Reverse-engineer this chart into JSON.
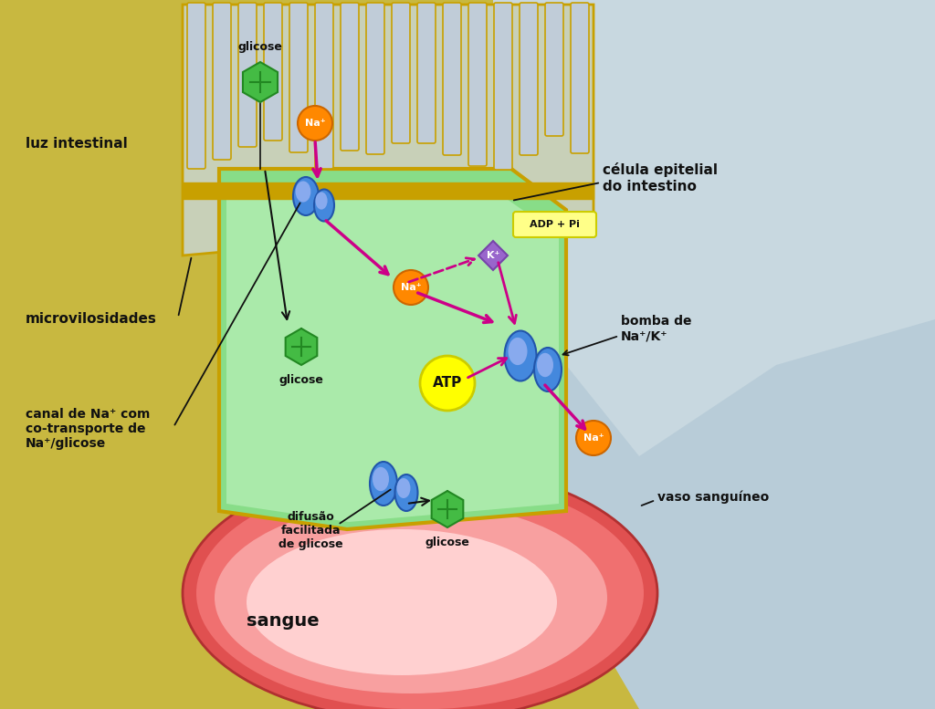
{
  "labels": {
    "glicose_top": "glicose",
    "luz_intestinal": "luz intestinal",
    "microvilosidades": "microvilosidades",
    "glicose_mid": "glicose",
    "canal_na": "canal de Na⁺ com\nco-transporte de\nNa⁺/glicose",
    "celula_epitelial": "célula epitelial\ndo intestino",
    "adp_pi": "ADP + Pi",
    "atp": "ATP",
    "bomba_na_k": "bomba de\nNa⁺/K⁺",
    "difusao": "difusão\nfacilitada\nde glicose",
    "glicose_bot": "glicose",
    "sangue": "sangue",
    "vaso_sanguineo": "vaso sanguíneo",
    "na1": "Na⁺",
    "na2": "Na⁺",
    "na3": "Na⁺",
    "k": "K⁺"
  },
  "colors": {
    "bg_yellow": "#c8b840",
    "bg_blue": "#b8ccd8",
    "cell_fill": "#88dd88",
    "cell_border": "#c8a000",
    "microvilli_fill": "#b8c8d8",
    "microvilli_border": "#c8a000",
    "blood_outer": "#e05050",
    "blood_mid": "#f07070",
    "blood_inner": "#f8a0a0",
    "blood_center": "#ffd0d0",
    "na_fill": "#ff8800",
    "na_border": "#cc6600",
    "k_fill": "#9966cc",
    "k_border": "#7744aa",
    "atp_fill": "#ffff00",
    "atp_border": "#cccc00",
    "adp_fill": "#ffff88",
    "adp_border": "#cccc00",
    "hex_fill": "#44bb44",
    "hex_border": "#228822",
    "protein_fill": "#4488dd",
    "protein_dark": "#2255aa",
    "arrow_magenta": "#cc0088",
    "arrow_magenta2": "#ee0099",
    "text_dark": "#111111",
    "connective_fill": "#c8d8c0",
    "connective_border": "#aabb88"
  }
}
